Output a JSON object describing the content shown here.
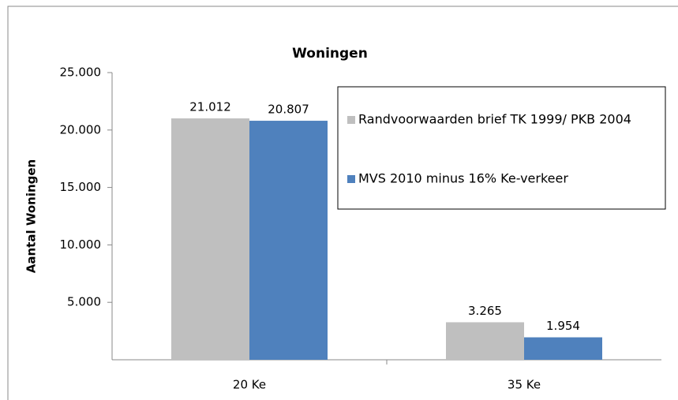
{
  "chart_data": {
    "type": "bar",
    "title": "Woningen",
    "y_label": "Aantal Woningen",
    "categories": [
      "20 Ke",
      "35 Ke"
    ],
    "series": [
      {
        "name": "Randvoorwaarden brief TK 1999/ PKB 2004",
        "color": "#bfbfbf",
        "values": [
          21012,
          3265
        ],
        "value_labels": [
          "21.012",
          "3.265"
        ]
      },
      {
        "name": "MVS 2010 minus 16% Ke-verkeer",
        "color": "#4f81bd",
        "values": [
          20807,
          1954
        ],
        "value_labels": [
          "20.807",
          "1.954"
        ]
      }
    ],
    "ylim": [
      0,
      25000
    ],
    "yticks": [
      {
        "value": 5000,
        "label": "5.000"
      },
      {
        "value": 10000,
        "label": "10.000"
      },
      {
        "value": 15000,
        "label": "15.000"
      },
      {
        "value": 20000,
        "label": "20.000"
      },
      {
        "value": 25000,
        "label": "25.000"
      }
    ],
    "grid": false,
    "legend": "upper right"
  }
}
